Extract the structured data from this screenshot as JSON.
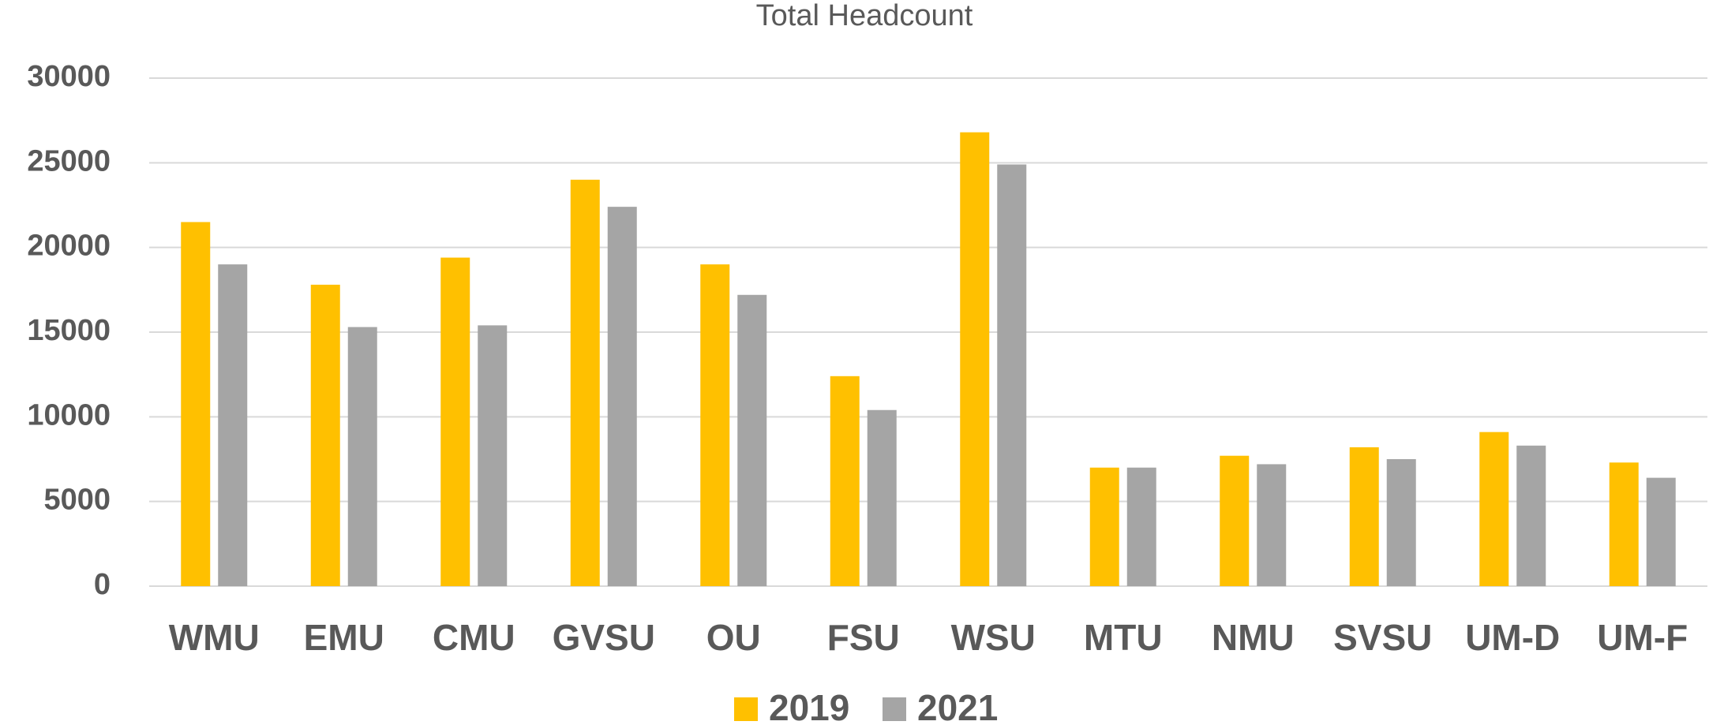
{
  "chart_data": {
    "type": "bar",
    "title": "Total Headcount",
    "categories": [
      "WMU",
      "EMU",
      "CMU",
      "GVSU",
      "OU",
      "FSU",
      "WSU",
      "MTU",
      "NMU",
      "SVSU",
      "UM-D",
      "UM-F"
    ],
    "series": [
      {
        "name": "2019",
        "color": "#FFC000",
        "values": [
          21500,
          17800,
          19400,
          24000,
          19000,
          12400,
          26800,
          7000,
          7700,
          8200,
          9100,
          7300
        ]
      },
      {
        "name": "2021",
        "color": "#A5A5A5",
        "values": [
          19000,
          15300,
          15400,
          22400,
          17200,
          10400,
          24900,
          7000,
          7200,
          7500,
          8300,
          6400
        ]
      }
    ],
    "ylim": [
      0,
      30000
    ],
    "yticks": [
      0,
      5000,
      10000,
      15000,
      20000,
      25000,
      30000
    ],
    "grid": true,
    "legend": "bottom"
  }
}
